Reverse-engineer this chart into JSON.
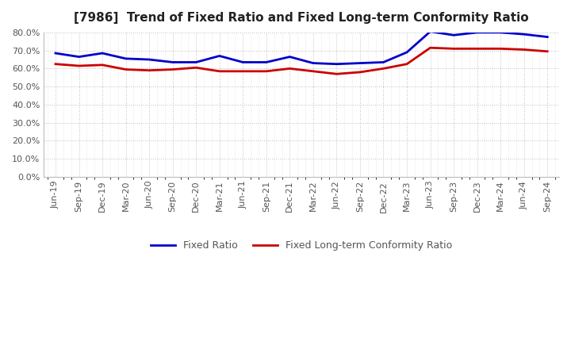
{
  "title": "[7986]  Trend of Fixed Ratio and Fixed Long-term Conformity Ratio",
  "x_labels": [
    "Jun-19",
    "Sep-19",
    "Dec-19",
    "Mar-20",
    "Jun-20",
    "Sep-20",
    "Dec-20",
    "Mar-21",
    "Jun-21",
    "Sep-21",
    "Dec-21",
    "Mar-22",
    "Jun-22",
    "Sep-22",
    "Dec-22",
    "Mar-23",
    "Jun-23",
    "Sep-23",
    "Dec-23",
    "Mar-24",
    "Jun-24",
    "Sep-24"
  ],
  "fixed_ratio": [
    68.5,
    66.5,
    68.5,
    65.5,
    65.0,
    63.5,
    63.5,
    67.0,
    63.5,
    63.5,
    66.5,
    63.0,
    62.5,
    63.0,
    63.5,
    69.0,
    80.5,
    78.5,
    80.0,
    80.0,
    79.0,
    77.5
  ],
  "fixed_lt_ratio": [
    62.5,
    61.5,
    62.0,
    59.5,
    59.0,
    59.5,
    60.5,
    58.5,
    58.5,
    58.5,
    60.0,
    58.5,
    57.0,
    58.0,
    60.0,
    62.5,
    71.5,
    71.0,
    71.0,
    71.0,
    70.5,
    69.5
  ],
  "fixed_ratio_color": "#0000cc",
  "fixed_lt_ratio_color": "#cc0000",
  "background_color": "#ffffff",
  "grid_color": "#999999",
  "ylim": [
    0.0,
    80.0
  ],
  "yticks": [
    0.0,
    10.0,
    20.0,
    30.0,
    40.0,
    50.0,
    60.0,
    70.0,
    80.0
  ],
  "legend_fixed_ratio": "Fixed Ratio",
  "legend_fixed_lt_ratio": "Fixed Long-term Conformity Ratio",
  "title_fontsize": 11,
  "tick_fontsize": 8,
  "legend_fontsize": 9,
  "line_width": 2.0
}
